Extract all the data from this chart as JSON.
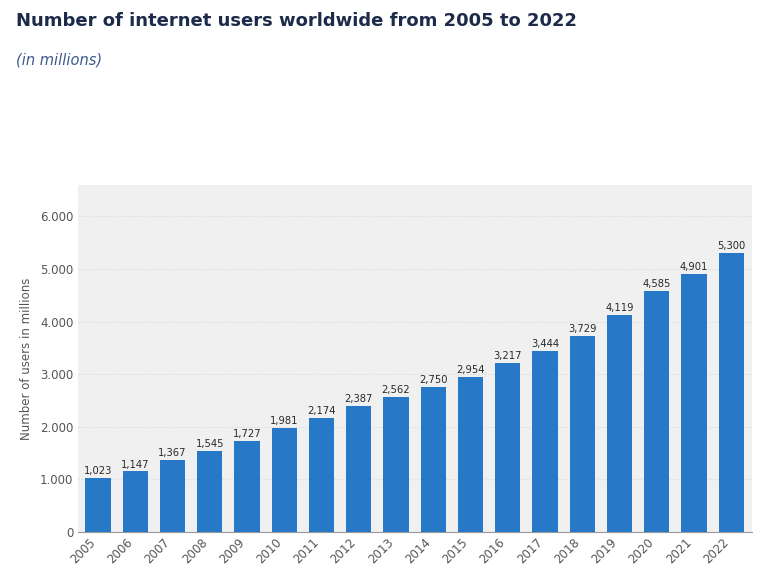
{
  "title": "Number of internet users worldwide from 2005 to 2022",
  "subtitle": "(in millions)",
  "ylabel": "Number of users in millions",
  "years": [
    2005,
    2006,
    2007,
    2008,
    2009,
    2010,
    2011,
    2012,
    2013,
    2014,
    2015,
    2016,
    2017,
    2018,
    2019,
    2020,
    2021,
    2022
  ],
  "values": [
    1023,
    1147,
    1367,
    1545,
    1727,
    1981,
    2174,
    2387,
    2562,
    2750,
    2954,
    3217,
    3444,
    3729,
    4119,
    4585,
    4901,
    5300
  ],
  "bar_color": "#2878c8",
  "background_color": "#ffffff",
  "plot_bg_color": "#f0f0f0",
  "grid_color": "#d8d8d8",
  "ylim": [
    0,
    6600
  ],
  "yticks": [
    0,
    1000,
    2000,
    3000,
    4000,
    5000,
    6000
  ],
  "title_color": "#1c2b4a",
  "subtitle_color": "#3a5a8c",
  "label_fontsize": 7.2,
  "bar_label_color": "#2a2a2a",
  "title_fontsize": 13,
  "subtitle_fontsize": 10.5,
  "ylabel_fontsize": 8.5,
  "tick_fontsize": 8.5
}
